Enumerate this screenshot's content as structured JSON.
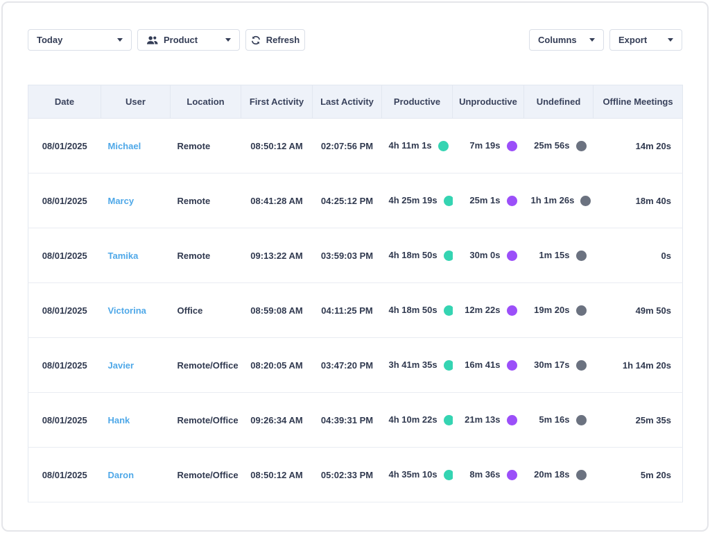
{
  "colors": {
    "link_blue": "#4FA8E8",
    "productive_dot": "#35D4B2",
    "unproductive_dot": "#9B4FF9",
    "undefined_dot": "#6B7280"
  },
  "toolbar": {
    "date_filter": {
      "label": "Today"
    },
    "group_filter": {
      "label": "Product"
    },
    "refresh": {
      "label": "Refresh"
    },
    "columns": {
      "label": "Columns"
    },
    "export": {
      "label": "Export"
    }
  },
  "table": {
    "columns": [
      {
        "key": "date",
        "label": "Date",
        "align": "center",
        "width": 105
      },
      {
        "key": "user",
        "label": "User",
        "align": "left",
        "width": 100
      },
      {
        "key": "location",
        "label": "Location",
        "align": "left",
        "width": 102
      },
      {
        "key": "first_activity",
        "label": "First Activity",
        "align": "center",
        "width": 103
      },
      {
        "key": "last_activity",
        "label": "Last Activity",
        "align": "center",
        "width": 100
      },
      {
        "key": "productive",
        "label": "Productive",
        "align": "right",
        "width": 102,
        "dot": "#35D4B2"
      },
      {
        "key": "unproductive",
        "label": "Unproductive",
        "align": "right",
        "width": 103,
        "dot": "#9B4FF9"
      },
      {
        "key": "undefined",
        "label": "Undefined",
        "align": "right",
        "width": 100,
        "dot": "#6B7280"
      },
      {
        "key": "offline_meetings",
        "label": "Offline Meetings",
        "align": "right",
        "width": 129
      }
    ],
    "rows": [
      {
        "date": "08/01/2025",
        "user": "Michael",
        "location": "Remote",
        "first_activity": "08:50:12 AM",
        "last_activity": "02:07:56 PM",
        "productive": "4h 11m 1s",
        "unproductive": "7m 19s",
        "undefined": "25m 56s",
        "offline_meetings": "14m 20s"
      },
      {
        "date": "08/01/2025",
        "user": "Marcy",
        "location": "Remote",
        "first_activity": "08:41:28 AM",
        "last_activity": "04:25:12 PM",
        "productive": "4h 25m 19s",
        "unproductive": "25m 1s",
        "undefined": "1h 1m 26s",
        "offline_meetings": "18m 40s"
      },
      {
        "date": "08/01/2025",
        "user": "Tamika",
        "location": "Remote",
        "first_activity": "09:13:22 AM",
        "last_activity": "03:59:03 PM",
        "productive": "4h 18m 50s",
        "unproductive": "30m 0s",
        "undefined": "1m 15s",
        "offline_meetings": "0s"
      },
      {
        "date": "08/01/2025",
        "user": "Victorina",
        "location": "Office",
        "first_activity": "08:59:08 AM",
        "last_activity": "04:11:25 PM",
        "productive": "4h 18m 50s",
        "unproductive": "12m 22s",
        "undefined": "19m 20s",
        "offline_meetings": "49m 50s"
      },
      {
        "date": "08/01/2025",
        "user": "Javier",
        "location": "Remote/Office",
        "first_activity": "08:20:05 AM",
        "last_activity": "03:47:20 PM",
        "productive": "3h 41m 35s",
        "unproductive": "16m 41s",
        "undefined": "30m 17s",
        "offline_meetings": "1h 14m 20s"
      },
      {
        "date": "08/01/2025",
        "user": "Hank",
        "location": "Remote/Office",
        "first_activity": "09:26:34 AM",
        "last_activity": "04:39:31 PM",
        "productive": "4h 10m 22s",
        "unproductive": "21m 13s",
        "undefined": "5m 16s",
        "offline_meetings": "25m 35s"
      },
      {
        "date": "08/01/2025",
        "user": "Daron",
        "location": "Remote/Office",
        "first_activity": "08:50:12 AM",
        "last_activity": "05:02:33 PM",
        "productive": "4h 35m 10s",
        "unproductive": "8m 36s",
        "undefined": "20m 18s",
        "offline_meetings": "5m 20s"
      }
    ]
  }
}
